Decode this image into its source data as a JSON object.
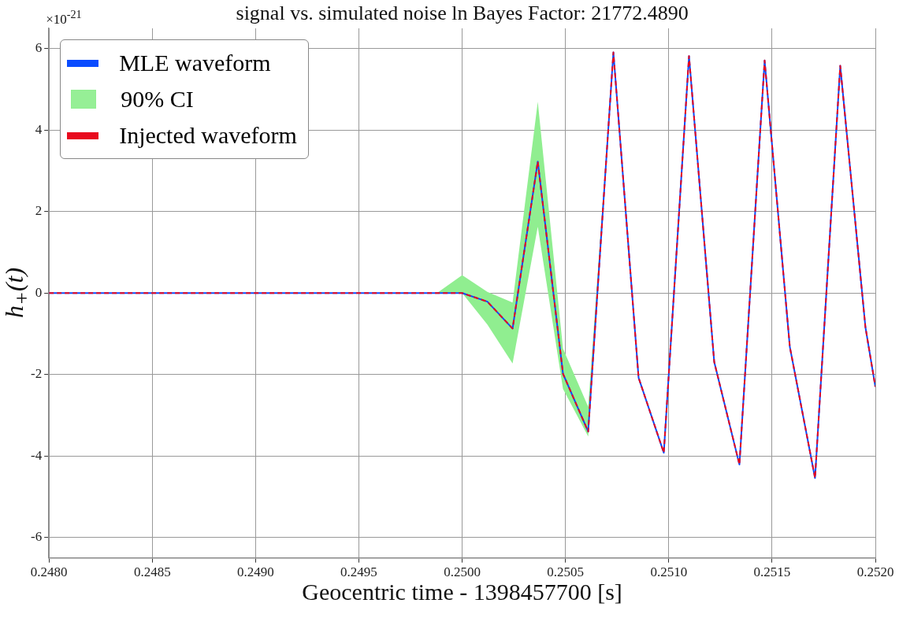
{
  "chart_data": {
    "type": "line",
    "title": "signal vs. simulated noise ln Bayes Factor: 21772.4890",
    "xlabel": "Geocentric time - 1398457700 [s]",
    "ylabel": "h$_{+}$(t)",
    "annotations": [
      "×10$^{-21}$"
    ],
    "x": [
      0.248,
      0.249878,
      0.25,
      0.250122,
      0.250244,
      0.250366,
      0.250488,
      0.25061,
      0.250732,
      0.250854,
      0.250976,
      0.251098,
      0.25122,
      0.251342,
      0.251464,
      0.251586,
      0.251708,
      0.25183,
      0.251952,
      0.252
    ],
    "series": [
      {
        "name": "MLE waveform",
        "color": "#0a4cff",
        "line_style": "solid",
        "values": [
          0,
          0,
          0,
          -0.21,
          -0.87,
          3.23,
          -1.98,
          -3.4,
          5.91,
          -2.08,
          -3.92,
          5.82,
          -1.69,
          -4.21,
          5.71,
          -1.32,
          -4.54,
          5.58,
          -0.84,
          -2.3
        ]
      },
      {
        "name": "90% CI",
        "type": "line",
        "color": "#90ee90",
        "x": [
          0.249878,
          0.25,
          0.250122,
          0.250244,
          0.250366,
          0.250488,
          0.25061,
          0.250732
        ],
        "values": [
          null,
          null,
          null,
          null,
          null,
          null,
          null,
          null
        ],
        "lower": [
          0,
          0,
          -0.77,
          -1.73,
          1.63,
          -2.35,
          -3.52,
          5.91
        ],
        "upper": [
          0,
          0.44,
          0.03,
          -0.23,
          4.7,
          -1.36,
          -2.79,
          5.91
        ]
      },
      {
        "name": "Injected waveform",
        "color": "#e8091e",
        "line_style": "dashed",
        "values": [
          0,
          0,
          0,
          -0.21,
          -0.87,
          3.23,
          -1.98,
          -3.4,
          5.91,
          -2.08,
          -3.92,
          5.82,
          -1.69,
          -4.21,
          5.71,
          -1.32,
          -4.54,
          5.58,
          -0.84,
          -2.3
        ]
      }
    ],
    "xlim": [
      0.248,
      0.252
    ],
    "xticks": [
      {
        "value": 0.248,
        "label": "0.2480"
      },
      {
        "value": 0.2485,
        "label": "0.2485"
      },
      {
        "value": 0.249,
        "label": "0.2490"
      },
      {
        "value": 0.2495,
        "label": "0.2495"
      },
      {
        "value": 0.25,
        "label": "0.2500"
      },
      {
        "value": 0.2505,
        "label": "0.2505"
      },
      {
        "value": 0.251,
        "label": "0.2510"
      },
      {
        "value": 0.2515,
        "label": "0.2515"
      },
      {
        "value": 0.252,
        "label": "0.2520"
      }
    ],
    "ylim": [
      -6.5,
      6.5
    ],
    "yticks": [
      -6,
      -4,
      -2,
      0,
      2,
      4,
      6
    ],
    "grid": true,
    "legend": "top left"
  }
}
